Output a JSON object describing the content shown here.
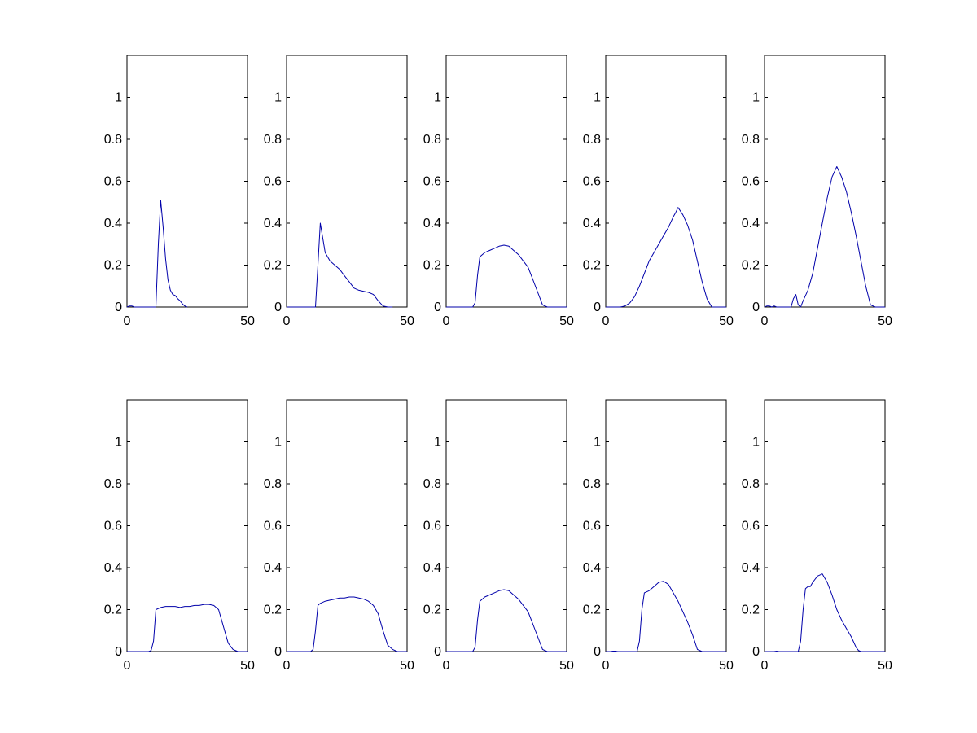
{
  "figure": {
    "layout": {
      "rows": 2,
      "cols": 5
    },
    "line_color": "#0000aa",
    "axis_color": "#000000"
  },
  "chart_data": [
    {
      "type": "line",
      "xlim": [
        0,
        50
      ],
      "ylim": [
        0,
        1.2
      ],
      "xticks": [
        0,
        50
      ],
      "xtick_labels": [
        "0",
        "50"
      ],
      "yticks": [
        0,
        0.2,
        0.4,
        0.6,
        0.8,
        1
      ],
      "ytick_labels": [
        "0",
        "0.2",
        "0.4",
        "0.6",
        "0.8",
        "1"
      ],
      "grid": false,
      "x": [
        0,
        1,
        2,
        3,
        11,
        12,
        13,
        14,
        15,
        16,
        17,
        18,
        19,
        20,
        21,
        22,
        23,
        24,
        25
      ],
      "y": [
        0,
        0.005,
        0.005,
        0,
        0,
        0,
        0.3,
        0.51,
        0.38,
        0.23,
        0.13,
        0.08,
        0.06,
        0.055,
        0.04,
        0.03,
        0.015,
        0.005,
        0
      ]
    },
    {
      "type": "line",
      "xlim": [
        0,
        50
      ],
      "ylim": [
        0,
        1.2
      ],
      "xticks": [
        0,
        50
      ],
      "xtick_labels": [
        "0",
        "50"
      ],
      "yticks": [
        0,
        0.2,
        0.4,
        0.6,
        0.8,
        1
      ],
      "ytick_labels": [
        "0",
        "0.2",
        "0.4",
        "0.6",
        "0.8",
        "1"
      ],
      "grid": false,
      "x": [
        0,
        11,
        12,
        13,
        14,
        15,
        16,
        18,
        20,
        22,
        24,
        26,
        28,
        30,
        32,
        34,
        36,
        38,
        40,
        42,
        44
      ],
      "y": [
        0,
        0,
        0,
        0.2,
        0.4,
        0.33,
        0.26,
        0.22,
        0.2,
        0.18,
        0.15,
        0.12,
        0.09,
        0.08,
        0.075,
        0.07,
        0.06,
        0.03,
        0.005,
        0,
        0
      ]
    },
    {
      "type": "line",
      "xlim": [
        0,
        50
      ],
      "ylim": [
        0,
        1.2
      ],
      "xticks": [
        0,
        50
      ],
      "xtick_labels": [
        "0",
        "50"
      ],
      "yticks": [
        0,
        0.2,
        0.4,
        0.6,
        0.8,
        1
      ],
      "ytick_labels": [
        "0",
        "0.2",
        "0.4",
        "0.6",
        "0.8",
        "1"
      ],
      "grid": false,
      "x": [
        0,
        11,
        12,
        13,
        14,
        16,
        18,
        20,
        22,
        24,
        26,
        28,
        30,
        32,
        34,
        36,
        38,
        40,
        42,
        44,
        46,
        48,
        50
      ],
      "y": [
        0,
        0,
        0.02,
        0.15,
        0.24,
        0.26,
        0.27,
        0.28,
        0.29,
        0.295,
        0.29,
        0.27,
        0.25,
        0.22,
        0.19,
        0.13,
        0.07,
        0.01,
        0,
        0,
        0,
        0,
        0
      ]
    },
    {
      "type": "line",
      "xlim": [
        0,
        50
      ],
      "ylim": [
        0,
        1.2
      ],
      "xticks": [
        0,
        50
      ],
      "xtick_labels": [
        "0",
        "50"
      ],
      "yticks": [
        0,
        0.2,
        0.4,
        0.6,
        0.8,
        1
      ],
      "ytick_labels": [
        "0",
        "0.2",
        "0.4",
        "0.6",
        "0.8",
        "1"
      ],
      "grid": false,
      "x": [
        0,
        6,
        8,
        10,
        12,
        14,
        16,
        18,
        20,
        22,
        24,
        26,
        28,
        29,
        30,
        32,
        34,
        36,
        38,
        40,
        42,
        44,
        46,
        48,
        50
      ],
      "y": [
        0,
        0,
        0.005,
        0.02,
        0.05,
        0.1,
        0.16,
        0.22,
        0.26,
        0.3,
        0.34,
        0.38,
        0.43,
        0.45,
        0.475,
        0.44,
        0.39,
        0.32,
        0.22,
        0.12,
        0.04,
        0,
        0,
        0,
        0
      ]
    },
    {
      "type": "line",
      "xlim": [
        0,
        50
      ],
      "ylim": [
        0,
        1.2
      ],
      "xticks": [
        0,
        50
      ],
      "xtick_labels": [
        "0",
        "50"
      ],
      "yticks": [
        0,
        0.2,
        0.4,
        0.6,
        0.8,
        1
      ],
      "ytick_labels": [
        "0",
        "0.2",
        "0.4",
        "0.6",
        "0.8",
        "1"
      ],
      "grid": false,
      "x": [
        0,
        1,
        2,
        3,
        4,
        5,
        6,
        11,
        12,
        13,
        14,
        15,
        16,
        18,
        20,
        22,
        24,
        26,
        28,
        30,
        32,
        34,
        36,
        38,
        40,
        42,
        44,
        46,
        48,
        50
      ],
      "y": [
        0,
        0.005,
        0.005,
        0,
        0.005,
        0,
        0,
        0,
        0.04,
        0.06,
        0.01,
        0,
        0.03,
        0.08,
        0.16,
        0.28,
        0.4,
        0.52,
        0.62,
        0.67,
        0.62,
        0.55,
        0.45,
        0.34,
        0.22,
        0.1,
        0.01,
        0,
        0,
        0
      ]
    },
    {
      "type": "line",
      "xlim": [
        0,
        50
      ],
      "ylim": [
        0,
        1.2
      ],
      "xticks": [
        0,
        50
      ],
      "xtick_labels": [
        "0",
        "50"
      ],
      "yticks": [
        0,
        0.2,
        0.4,
        0.6,
        0.8,
        1
      ],
      "ytick_labels": [
        "0",
        "0.2",
        "0.4",
        "0.6",
        "0.8",
        "1"
      ],
      "grid": false,
      "x": [
        0,
        9,
        10,
        11,
        12,
        14,
        16,
        18,
        20,
        22,
        24,
        26,
        28,
        30,
        32,
        34,
        36,
        38,
        40,
        42,
        44,
        46,
        48,
        50
      ],
      "y": [
        0,
        0,
        0.005,
        0.05,
        0.2,
        0.21,
        0.215,
        0.215,
        0.215,
        0.21,
        0.215,
        0.215,
        0.22,
        0.22,
        0.225,
        0.225,
        0.22,
        0.2,
        0.12,
        0.04,
        0.01,
        0,
        0,
        0
      ]
    },
    {
      "type": "line",
      "xlim": [
        0,
        50
      ],
      "ylim": [
        0,
        1.2
      ],
      "xticks": [
        0,
        50
      ],
      "xtick_labels": [
        "0",
        "50"
      ],
      "yticks": [
        0,
        0.2,
        0.4,
        0.6,
        0.8,
        1
      ],
      "ytick_labels": [
        "0",
        "0.2",
        "0.4",
        "0.6",
        "0.8",
        "1"
      ],
      "grid": false,
      "x": [
        0,
        10,
        11,
        12,
        13,
        14,
        16,
        18,
        20,
        22,
        24,
        26,
        28,
        30,
        32,
        34,
        36,
        38,
        40,
        42,
        44,
        46,
        48,
        50
      ],
      "y": [
        0,
        0,
        0.01,
        0.1,
        0.22,
        0.23,
        0.24,
        0.245,
        0.25,
        0.255,
        0.255,
        0.26,
        0.26,
        0.255,
        0.25,
        0.24,
        0.22,
        0.18,
        0.1,
        0.03,
        0.01,
        0,
        0,
        0
      ]
    },
    {
      "type": "line",
      "xlim": [
        0,
        50
      ],
      "ylim": [
        0,
        1.2
      ],
      "xticks": [
        0,
        50
      ],
      "xtick_labels": [
        "0",
        "50"
      ],
      "yticks": [
        0,
        0.2,
        0.4,
        0.6,
        0.8,
        1
      ],
      "ytick_labels": [
        "0",
        "0.2",
        "0.4",
        "0.6",
        "0.8",
        "1"
      ],
      "grid": false,
      "x": [
        0,
        11,
        12,
        13,
        14,
        16,
        18,
        20,
        22,
        24,
        26,
        28,
        30,
        32,
        34,
        36,
        38,
        40,
        42,
        44,
        46,
        48,
        50
      ],
      "y": [
        0,
        0,
        0.02,
        0.15,
        0.24,
        0.26,
        0.27,
        0.28,
        0.29,
        0.295,
        0.29,
        0.27,
        0.25,
        0.22,
        0.19,
        0.13,
        0.07,
        0.01,
        0,
        0,
        0,
        0,
        0
      ]
    },
    {
      "type": "line",
      "xlim": [
        0,
        50
      ],
      "ylim": [
        0,
        1.2
      ],
      "xticks": [
        0,
        50
      ],
      "xtick_labels": [
        "0",
        "50"
      ],
      "yticks": [
        0,
        0.2,
        0.4,
        0.6,
        0.8,
        1
      ],
      "ytick_labels": [
        "0",
        "0.2",
        "0.4",
        "0.6",
        "0.8",
        "1"
      ],
      "grid": false,
      "x": [
        0,
        2,
        3,
        4,
        5,
        13,
        14,
        15,
        16,
        18,
        20,
        22,
        24,
        26,
        28,
        30,
        32,
        34,
        36,
        38,
        40,
        42,
        44,
        46,
        48,
        50
      ],
      "y": [
        0,
        0,
        0.002,
        0.002,
        0,
        0,
        0.05,
        0.2,
        0.28,
        0.29,
        0.31,
        0.33,
        0.335,
        0.32,
        0.28,
        0.24,
        0.19,
        0.14,
        0.08,
        0.01,
        0,
        0,
        0,
        0,
        0,
        0
      ]
    },
    {
      "type": "line",
      "xlim": [
        0,
        50
      ],
      "ylim": [
        0,
        1.2
      ],
      "xticks": [
        0,
        50
      ],
      "xtick_labels": [
        "0",
        "50"
      ],
      "yticks": [
        0,
        0.2,
        0.4,
        0.6,
        0.8,
        1
      ],
      "ytick_labels": [
        "0",
        "0.2",
        "0.4",
        "0.6",
        "0.8",
        "1"
      ],
      "grid": false,
      "x": [
        0,
        4,
        5,
        6,
        14,
        15,
        16,
        17,
        18,
        19,
        20,
        22,
        24,
        26,
        28,
        30,
        32,
        34,
        36,
        38,
        39,
        40,
        42,
        44,
        46,
        48,
        50
      ],
      "y": [
        0,
        0,
        0.002,
        0,
        0,
        0.05,
        0.2,
        0.3,
        0.31,
        0.31,
        0.33,
        0.36,
        0.37,
        0.33,
        0.27,
        0.2,
        0.15,
        0.11,
        0.07,
        0.02,
        0.005,
        0,
        0,
        0,
        0,
        0,
        0
      ]
    }
  ]
}
